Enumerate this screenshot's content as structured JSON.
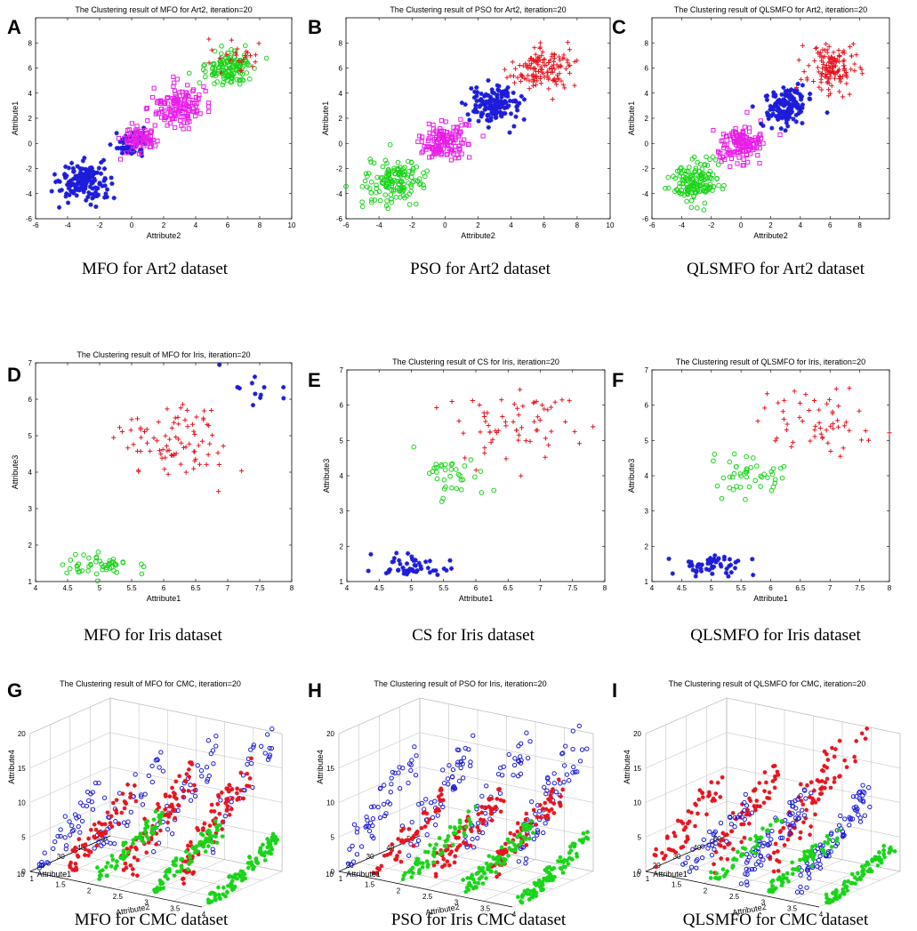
{
  "figure": {
    "colors": {
      "red": "#e8141e",
      "blue": "#1c1cd9",
      "green": "#19d419",
      "magenta": "#e81ee8"
    },
    "panels": [
      {
        "letter": "A",
        "caption": "MFO for Art2 dataset"
      },
      {
        "letter": "B",
        "caption": "PSO for Art2 dataset"
      },
      {
        "letter": "C",
        "caption": "QLSMFO for Art2 dataset"
      },
      {
        "letter": "D",
        "caption": "MFO for Iris dataset"
      },
      {
        "letter": "E",
        "caption": "CS for Iris dataset"
      },
      {
        "letter": "F",
        "caption": "QLSMFO for Iris dataset"
      },
      {
        "letter": "G",
        "caption": "MFO for CMC dataset"
      },
      {
        "letter": "H",
        "caption": "PSO for Iris CMC dataset"
      },
      {
        "letter": "I",
        "caption": "QLSMFO for CMC dataset"
      }
    ]
  },
  "chart_data": [
    {
      "type": "scatter",
      "title": "The Clustering result of MFO for Art2, iteration=20",
      "xlabel": "Attribute2",
      "ylabel": "Attribute1",
      "xlim": [
        -6,
        10
      ],
      "ylim": [
        -6,
        10
      ],
      "xticks": [
        -6,
        -4,
        -2,
        0,
        2,
        4,
        6,
        8,
        10
      ],
      "yticks": [
        -6,
        -4,
        -2,
        0,
        2,
        4,
        6,
        8
      ],
      "clusters": [
        {
          "center": [
            -3,
            -3
          ],
          "spread": 0.8,
          "n": 150,
          "color": "blue",
          "marker": "star"
        },
        {
          "center": [
            0,
            0
          ],
          "spread": 0.5,
          "n": 60,
          "color": "blue",
          "marker": "star"
        },
        {
          "center": [
            0.4,
            0.4
          ],
          "spread": 0.5,
          "n": 80,
          "color": "magenta",
          "marker": "square"
        },
        {
          "center": [
            3,
            3
          ],
          "spread": 0.8,
          "n": 140,
          "color": "magenta",
          "marker": "square"
        },
        {
          "center": [
            6,
            6
          ],
          "spread": 0.7,
          "n": 140,
          "color": "green",
          "marker": "circle"
        },
        {
          "center": [
            6.8,
            6.8
          ],
          "spread": 0.6,
          "n": 25,
          "color": "red",
          "marker": "plus"
        }
      ]
    },
    {
      "type": "scatter",
      "title": "The Clustering result of PSO for Art2, iteration=20",
      "xlabel": "Attribute2",
      "ylabel": "Attribute1",
      "xlim": [
        -6,
        10
      ],
      "ylim": [
        -6,
        10
      ],
      "xticks": [
        -6,
        -4,
        -2,
        0,
        2,
        4,
        6,
        8,
        10
      ],
      "yticks": [
        -6,
        -4,
        -2,
        0,
        2,
        4,
        6,
        8
      ],
      "clusters": [
        {
          "center": [
            -3,
            -3
          ],
          "spread": 0.8,
          "n": 150,
          "color": "green",
          "marker": "circle"
        },
        {
          "center": [
            0,
            0
          ],
          "spread": 0.7,
          "n": 140,
          "color": "magenta",
          "marker": "square"
        },
        {
          "center": [
            3,
            3
          ],
          "spread": 0.7,
          "n": 140,
          "color": "blue",
          "marker": "star"
        },
        {
          "center": [
            6,
            6
          ],
          "spread": 0.8,
          "n": 140,
          "color": "red",
          "marker": "plus"
        }
      ]
    },
    {
      "type": "scatter",
      "title": "The Clustering result of QLSMFO for Art2, iteration=20",
      "xlabel": "Attribute2",
      "ylabel": "Attribute1",
      "xlim": [
        -6,
        10
      ],
      "ylim": [
        -6,
        10
      ],
      "xticks": [
        -6,
        -4,
        -2,
        0,
        2,
        4,
        6,
        8
      ],
      "yticks": [
        -6,
        -4,
        -2,
        0,
        2,
        4,
        6,
        8
      ],
      "clusters": [
        {
          "center": [
            -3,
            -3
          ],
          "spread": 0.8,
          "n": 150,
          "color": "green",
          "marker": "circle"
        },
        {
          "center": [
            0,
            0
          ],
          "spread": 0.7,
          "n": 140,
          "color": "magenta",
          "marker": "square"
        },
        {
          "center": [
            3,
            3
          ],
          "spread": 0.7,
          "n": 140,
          "color": "blue",
          "marker": "star"
        },
        {
          "center": [
            6,
            6
          ],
          "spread": 0.8,
          "n": 140,
          "color": "red",
          "marker": "plus"
        }
      ]
    },
    {
      "type": "scatter",
      "title": "The Clustering result of MFO for Iris, iteration=20",
      "xlabel": "Attribute1",
      "ylabel": "Attribute3",
      "xlim": [
        4,
        8
      ],
      "ylim": [
        1,
        7
      ],
      "xticks": [
        4,
        4.5,
        5,
        5.5,
        6,
        6.5,
        7,
        7.5,
        8
      ],
      "yticks": [
        1,
        2,
        3,
        4,
        5,
        6,
        7
      ],
      "clusters": [
        {
          "center": [
            5.0,
            1.45
          ],
          "spread": 0.28,
          "spread_y": 0.17,
          "n": 50,
          "color": "green",
          "marker": "circle"
        },
        {
          "center": [
            6.2,
            4.8
          ],
          "spread": 0.45,
          "spread_y": 0.55,
          "n": 85,
          "color": "red",
          "marker": "plus"
        },
        {
          "center": [
            7.5,
            6.3
          ],
          "spread": 0.22,
          "spread_y": 0.3,
          "n": 12,
          "color": "blue",
          "marker": "star"
        }
      ]
    },
    {
      "type": "scatter",
      "title": "The Clustering result of CS for Iris, iteration=20",
      "xlabel": "Attribute1",
      "ylabel": "Attribute3",
      "xlim": [
        4,
        8
      ],
      "ylim": [
        1,
        7
      ],
      "xticks": [
        4,
        4.5,
        5,
        5.5,
        6,
        6.5,
        7,
        7.5,
        8
      ],
      "yticks": [
        1,
        2,
        3,
        4,
        5,
        6,
        7
      ],
      "clusters": [
        {
          "center": [
            5.0,
            1.45
          ],
          "spread": 0.3,
          "spread_y": 0.17,
          "n": 50,
          "color": "blue",
          "marker": "star"
        },
        {
          "center": [
            5.6,
            4.0
          ],
          "spread": 0.25,
          "spread_y": 0.35,
          "n": 35,
          "color": "green",
          "marker": "circle"
        },
        {
          "center": [
            6.6,
            5.4
          ],
          "spread": 0.45,
          "spread_y": 0.5,
          "n": 65,
          "color": "red",
          "marker": "plus"
        }
      ]
    },
    {
      "type": "scatter",
      "title": "The Clustering result of QLSMFO for Iris, iteration=20",
      "xlabel": "Attribute1",
      "ylabel": "Attribute3",
      "xlim": [
        4,
        8
      ],
      "ylim": [
        1,
        7
      ],
      "xticks": [
        4,
        4.5,
        5,
        5.5,
        6,
        6.5,
        7,
        7.5,
        8
      ],
      "yticks": [
        1,
        2,
        3,
        4,
        5,
        6,
        7
      ],
      "clusters": [
        {
          "center": [
            5.0,
            1.45
          ],
          "spread": 0.3,
          "spread_y": 0.17,
          "n": 50,
          "color": "blue",
          "marker": "star"
        },
        {
          "center": [
            5.7,
            4.1
          ],
          "spread": 0.3,
          "spread_y": 0.4,
          "n": 45,
          "color": "green",
          "marker": "circle"
        },
        {
          "center": [
            6.7,
            5.5
          ],
          "spread": 0.45,
          "spread_y": 0.5,
          "n": 55,
          "color": "red",
          "marker": "plus"
        }
      ]
    },
    {
      "type": "scatter3d",
      "title": "The Clustering result of MFO for CMC, iteration=20",
      "xlabel": "Attribute1",
      "ylabel": "Attribute2",
      "zlabel": "Attribute4",
      "x_ticks": [
        10,
        20,
        30,
        40,
        50
      ],
      "y_ticks": [
        1,
        1.5,
        2,
        2.5,
        3,
        3.5,
        4
      ],
      "z_ticks": [
        0,
        5,
        10,
        15,
        20
      ],
      "groups": [
        {
          "attr2": 1,
          "zrange": [
            0,
            9
          ],
          "color": "blue",
          "marker": "circle",
          "n": 40
        },
        {
          "attr2": 2,
          "zrange": [
            4,
            14
          ],
          "color": "blue",
          "marker": "circle",
          "n": 40
        },
        {
          "attr2": 3,
          "zrange": [
            7,
            17
          ],
          "color": "blue",
          "marker": "circle",
          "n": 35
        },
        {
          "attr2": 4,
          "zrange": [
            9,
            21
          ],
          "color": "blue",
          "marker": "circle",
          "n": 30
        },
        {
          "attr2": 1.5,
          "zrange": [
            0,
            8
          ],
          "color": "red",
          "marker": "star",
          "n": 60
        },
        {
          "attr2": 2.5,
          "zrange": [
            2,
            12
          ],
          "color": "red",
          "marker": "star",
          "n": 80
        },
        {
          "attr2": 3.5,
          "zrange": [
            4,
            14
          ],
          "color": "red",
          "marker": "star",
          "n": 80
        },
        {
          "attr2": 2,
          "zrange": [
            0,
            5
          ],
          "color": "green",
          "marker": "star",
          "n": 60
        },
        {
          "attr2": 3,
          "zrange": [
            0,
            5
          ],
          "color": "green",
          "marker": "star",
          "n": 80
        },
        {
          "attr2": 4,
          "zrange": [
            0,
            5
          ],
          "color": "green",
          "marker": "star",
          "n": 90
        }
      ]
    },
    {
      "type": "scatter3d",
      "title": "The Clustering result of PSO for Iris, iteration=20",
      "xlabel": "Attribute1",
      "ylabel": "Attribute2",
      "zlabel": "Attribute4",
      "x_ticks": [
        10,
        20,
        30,
        40,
        50
      ],
      "y_ticks": [
        1,
        1.5,
        2,
        2.5,
        3,
        3.5,
        4
      ],
      "z_ticks": [
        0,
        5,
        10,
        15,
        20
      ],
      "groups": [
        {
          "attr2": 1,
          "zrange": [
            2,
            12
          ],
          "color": "blue",
          "marker": "circle",
          "n": 50
        },
        {
          "attr2": 2,
          "zrange": [
            5,
            15
          ],
          "color": "blue",
          "marker": "circle",
          "n": 50
        },
        {
          "attr2": 3,
          "zrange": [
            7,
            17
          ],
          "color": "blue",
          "marker": "circle",
          "n": 45
        },
        {
          "attr2": 4,
          "zrange": [
            8,
            21
          ],
          "color": "blue",
          "marker": "circle",
          "n": 60
        },
        {
          "attr2": 1.5,
          "zrange": [
            0,
            7
          ],
          "color": "red",
          "marker": "star",
          "n": 50
        },
        {
          "attr2": 2.5,
          "zrange": [
            2,
            9
          ],
          "color": "red",
          "marker": "star",
          "n": 70
        },
        {
          "attr2": 3.5,
          "zrange": [
            4,
            11
          ],
          "color": "red",
          "marker": "star",
          "n": 70
        },
        {
          "attr2": 2,
          "zrange": [
            0,
            5
          ],
          "color": "green",
          "marker": "star",
          "n": 60
        },
        {
          "attr2": 3,
          "zrange": [
            0,
            5
          ],
          "color": "green",
          "marker": "star",
          "n": 80
        },
        {
          "attr2": 4,
          "zrange": [
            0,
            5
          ],
          "color": "green",
          "marker": "star",
          "n": 90
        }
      ]
    },
    {
      "type": "scatter3d",
      "title": "The Clustering result of QLSMFO for CMC, iteration=20",
      "xlabel": "Attribute1",
      "ylabel": "Attribute2",
      "zlabel": "Attribute4",
      "x_ticks": [
        10,
        20,
        30,
        40,
        50
      ],
      "y_ticks": [
        1,
        1.5,
        2,
        2.5,
        3,
        3.5,
        4
      ],
      "z_ticks": [
        0,
        5,
        10,
        15,
        20
      ],
      "groups": [
        {
          "attr2": 1,
          "zrange": [
            0,
            9
          ],
          "color": "red",
          "marker": "star",
          "n": 50
        },
        {
          "attr2": 2,
          "zrange": [
            2,
            12
          ],
          "color": "red",
          "marker": "star",
          "n": 60
        },
        {
          "attr2": 3,
          "zrange": [
            4,
            16
          ],
          "color": "red",
          "marker": "star",
          "n": 60
        },
        {
          "attr2": 3.5,
          "zrange": [
            9,
            21
          ],
          "color": "red",
          "marker": "star",
          "n": 20
        },
        {
          "attr2": 1.5,
          "zrange": [
            0,
            6
          ],
          "color": "blue",
          "marker": "circle",
          "n": 40
        },
        {
          "attr2": 2.5,
          "zrange": [
            1,
            9
          ],
          "color": "blue",
          "marker": "circle",
          "n": 70
        },
        {
          "attr2": 3.5,
          "zrange": [
            2,
            10
          ],
          "color": "blue",
          "marker": "circle",
          "n": 80
        },
        {
          "attr2": 2,
          "zrange": [
            0,
            4
          ],
          "color": "green",
          "marker": "star",
          "n": 40
        },
        {
          "attr2": 3,
          "zrange": [
            0,
            4
          ],
          "color": "green",
          "marker": "star",
          "n": 60
        },
        {
          "attr2": 4,
          "zrange": [
            0,
            4
          ],
          "color": "green",
          "marker": "star",
          "n": 80
        }
      ]
    }
  ]
}
